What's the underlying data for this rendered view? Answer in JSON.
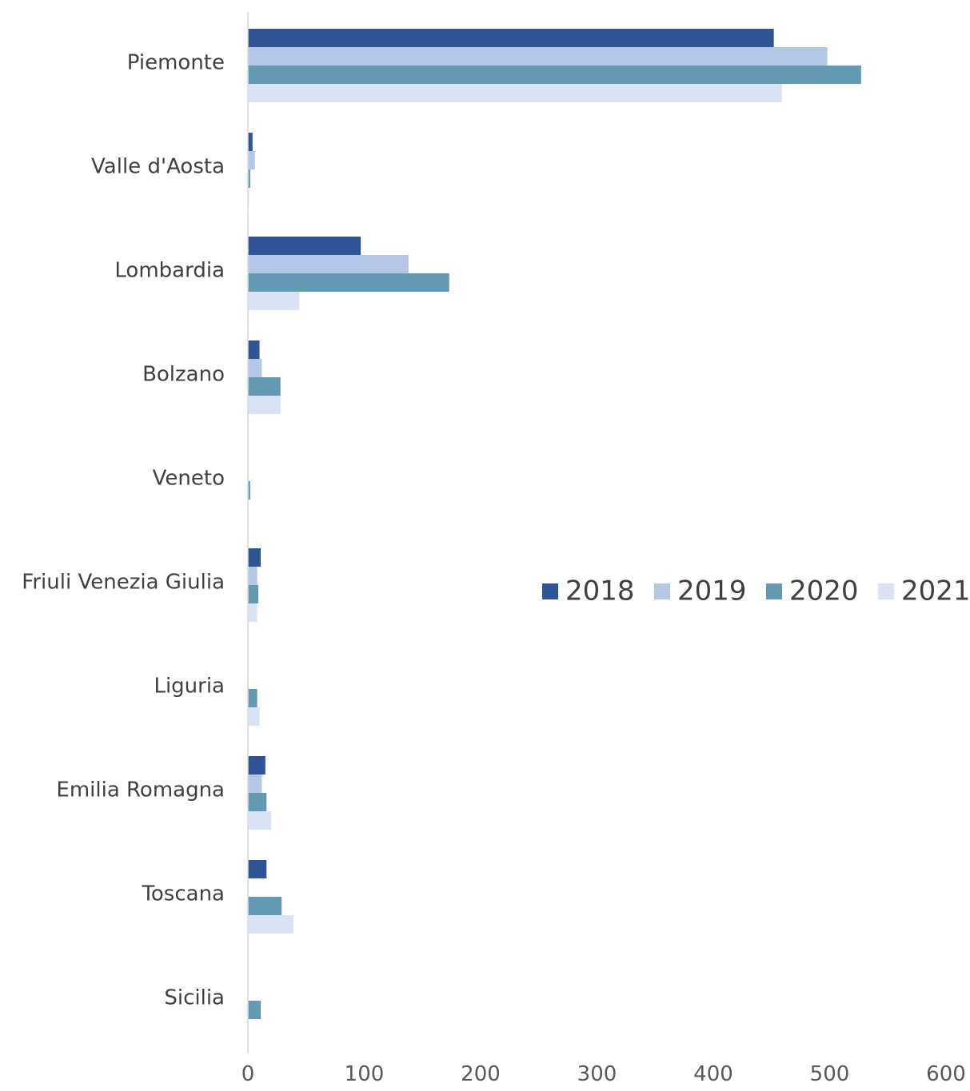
{
  "chart_data": {
    "type": "bar",
    "orientation": "horizontal",
    "categories": [
      "Piemonte",
      "Valle d'Aosta",
      "Lombardia",
      "Bolzano",
      "Veneto",
      "Friuli Venezia Giulia",
      "Liguria",
      "Emilia Romagna",
      "Toscana",
      "Sicilia"
    ],
    "series": [
      {
        "name": "2018",
        "color": "#2F5597",
        "values": [
          452,
          4,
          97,
          10,
          0,
          11,
          0,
          15,
          16,
          0
        ]
      },
      {
        "name": "2019",
        "color": "#B4C7E7",
        "values": [
          498,
          6,
          138,
          12,
          0,
          8,
          0,
          12,
          0,
          0
        ]
      },
      {
        "name": "2020",
        "color": "#6399B2",
        "values": [
          527,
          2,
          173,
          28,
          2,
          9,
          8,
          16,
          29,
          11
        ]
      },
      {
        "name": "2021",
        "color": "#DAE3F3",
        "values": [
          459,
          1,
          44,
          28,
          0,
          8,
          10,
          20,
          39,
          0
        ]
      }
    ],
    "xlim": [
      0,
      600
    ],
    "xticks": [
      "0",
      "100",
      "200",
      "300",
      "400",
      "500",
      "600"
    ],
    "title": "",
    "xlabel": "",
    "ylabel": "",
    "grid": false,
    "legend_position": "right"
  }
}
